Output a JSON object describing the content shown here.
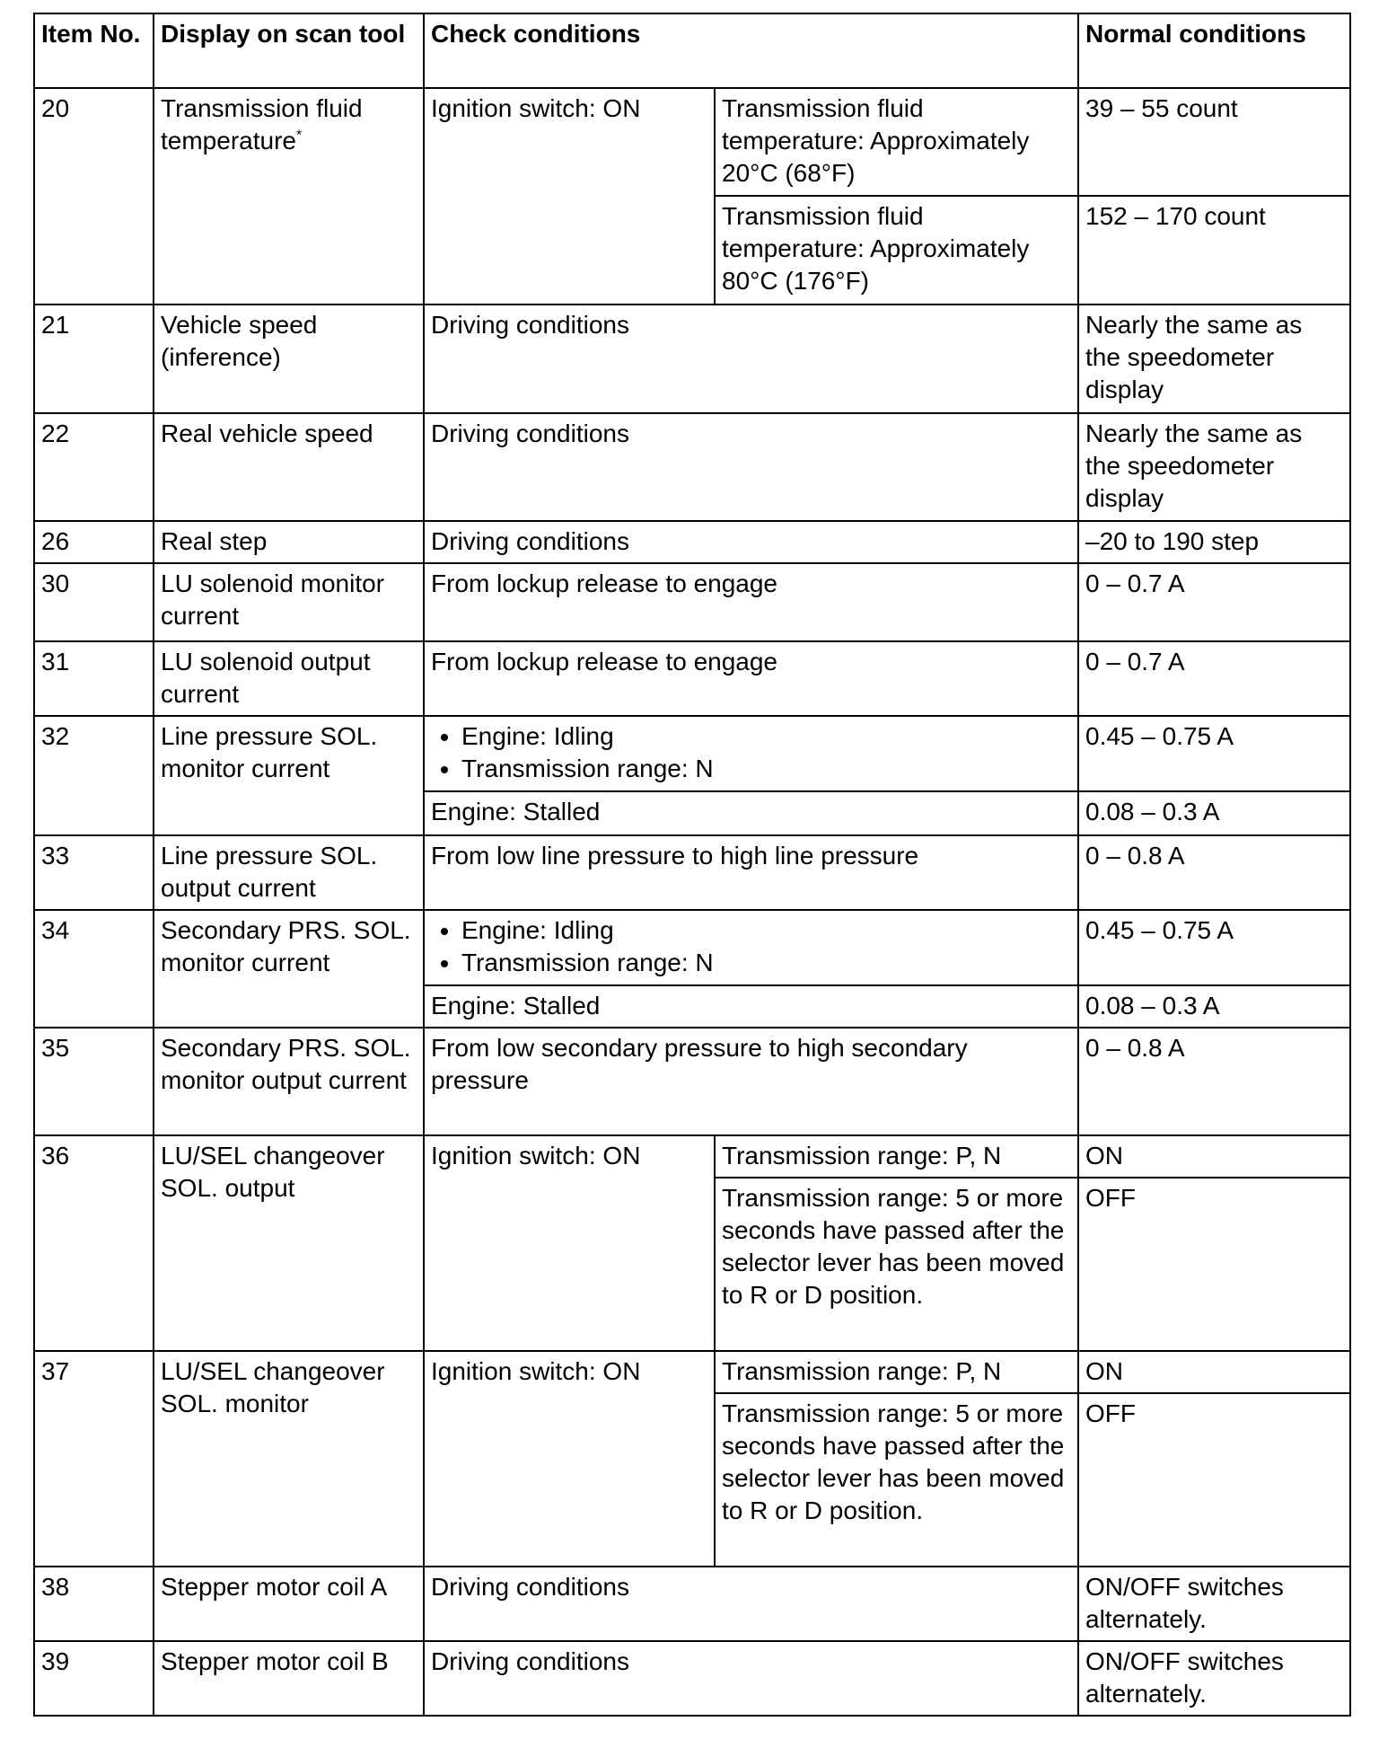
{
  "header": {
    "item_no": "Item No.",
    "display": "Display on scan tool",
    "check": "Check conditions",
    "normal": "Normal conditions"
  },
  "rows": [
    {
      "item": "20",
      "display": "Transmission fluid temperature",
      "display_sup": "*",
      "check": "Ignition switch: ON",
      "subs": [
        {
          "condition": "Transmission fluid temperature: Approximately 20°C (68°F)",
          "normal": "39 – 55 count"
        },
        {
          "condition": "Transmission fluid temperature: Approximately 80°C (176°F)",
          "normal": "152 – 170 count"
        }
      ]
    },
    {
      "item": "21",
      "display": "Vehicle speed (inference)",
      "subs": [
        {
          "check": "Driving conditions",
          "normal": "Nearly the same as the speedometer display"
        }
      ]
    },
    {
      "item": "22",
      "display": "Real vehicle speed",
      "subs": [
        {
          "check": "Driving conditions",
          "normal": "Nearly the same as the speedometer display"
        }
      ]
    },
    {
      "item": "26",
      "display": "Real step",
      "subs": [
        {
          "check": "Driving conditions",
          "normal": "–20 to 190 step"
        }
      ]
    },
    {
      "item": "30",
      "display": "LU solenoid monitor current",
      "subs": [
        {
          "check": "From lockup release to engage",
          "normal": "0 – 0.7 A"
        }
      ]
    },
    {
      "item": "31",
      "display": "LU solenoid output current",
      "subs": [
        {
          "check": "From lockup release to engage",
          "normal": "0 – 0.7 A"
        }
      ]
    },
    {
      "item": "32",
      "display": "Line pressure SOL. monitor current",
      "subs": [
        {
          "bullets": [
            "Engine: Idling",
            "Transmission range: N"
          ],
          "normal": "0.45 – 0.75 A"
        },
        {
          "check": "Engine: Stalled",
          "normal": "0.08 – 0.3 A"
        }
      ]
    },
    {
      "item": "33",
      "display": "Line pressure SOL. output current",
      "subs": [
        {
          "check": "From low line pressure to high line pressure",
          "normal": "0 – 0.8 A"
        }
      ]
    },
    {
      "item": "34",
      "display": "Secondary PRS. SOL. monitor current",
      "subs": [
        {
          "bullets": [
            "Engine: Idling",
            "Transmission range: N"
          ],
          "normal": "0.45 – 0.75 A"
        },
        {
          "check": "Engine: Stalled",
          "normal": "0.08 – 0.3 A"
        }
      ]
    },
    {
      "item": "35",
      "display": "Secondary PRS. SOL. monitor output current",
      "subs": [
        {
          "check": "From low secondary pressure to high secondary pressure",
          "normal": "0 – 0.8 A"
        }
      ]
    },
    {
      "item": "36",
      "display": "LU/SEL changeover SOL. output",
      "check": "Ignition switch: ON",
      "subs": [
        {
          "condition": "Transmission range: P, N",
          "normal": "ON"
        },
        {
          "condition": "Transmission range: 5 or more seconds have passed after the selector lever has been moved to R or D position.",
          "normal": "OFF"
        }
      ]
    },
    {
      "item": "37",
      "display": "LU/SEL changeover SOL. monitor",
      "check": "Ignition switch: ON",
      "subs": [
        {
          "condition": "Transmission range: P, N",
          "normal": "ON"
        },
        {
          "condition": "Transmission range: 5 or more seconds have passed after the selector lever has been moved to R or D position.",
          "normal": "OFF"
        }
      ]
    },
    {
      "item": "38",
      "display": "Stepper motor coil A",
      "subs": [
        {
          "check": "Driving conditions",
          "normal": "ON/OFF switches alternately."
        }
      ]
    },
    {
      "item": "39",
      "display": "Stepper motor coil B",
      "subs": [
        {
          "check": "Driving conditions",
          "normal": "ON/OFF switches alternately."
        }
      ]
    }
  ]
}
